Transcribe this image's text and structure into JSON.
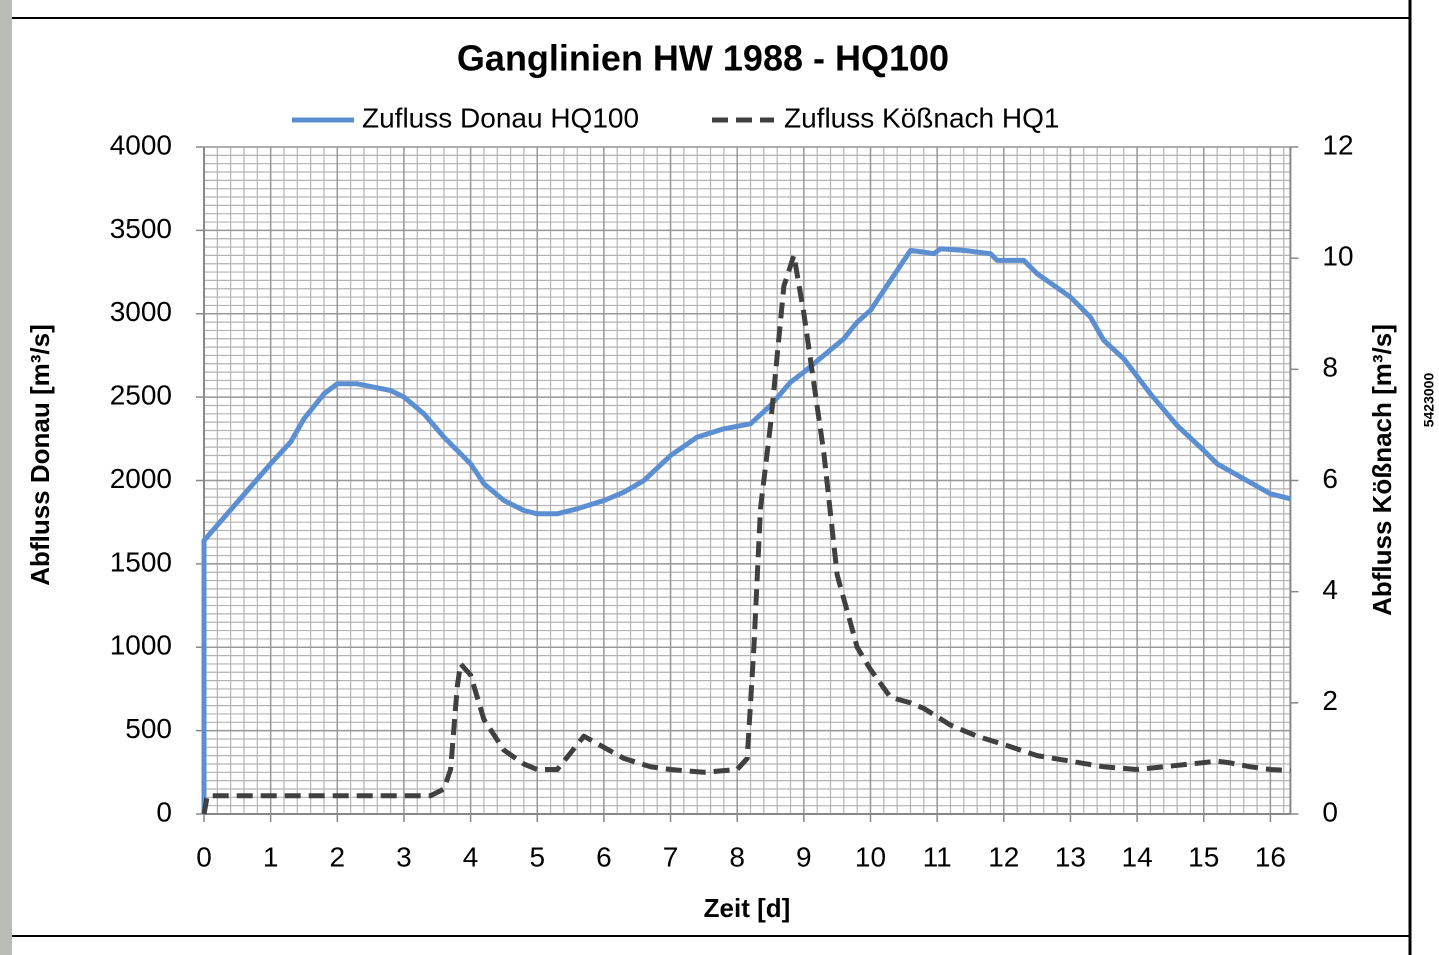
{
  "chart_data": {
    "type": "line",
    "title": "Ganglinien HW 1988 - HQ100",
    "xlabel": "Zeit [d]",
    "ylabel": "Abfluss Donau [m³/s]",
    "y2label": "Abfluss Kößnach [m³/s]",
    "xlim": [
      0,
      16.3
    ],
    "ylim": [
      0,
      4000
    ],
    "y2lim": [
      0,
      12
    ],
    "xticks": [
      0,
      1,
      2,
      3,
      4,
      5,
      6,
      7,
      8,
      9,
      10,
      11,
      12,
      13,
      14,
      15,
      16
    ],
    "yticks": [
      0,
      500,
      1000,
      1500,
      2000,
      2500,
      3000,
      3500,
      4000
    ],
    "y2ticks": [
      0,
      2,
      4,
      6,
      8,
      10,
      12
    ],
    "grid": true,
    "legend": "top",
    "series": [
      {
        "name": "Zufluss Donau HQ100",
        "color": "#5b8fd2",
        "line_style": "solid",
        "x": [
          0,
          0,
          0.5,
          1,
          1.3,
          1.5,
          1.8,
          2,
          2.3,
          2.8,
          3,
          3.3,
          3.6,
          4,
          4.2,
          4.5,
          4.8,
          5,
          5.3,
          5.6,
          6,
          6.3,
          6.6,
          7,
          7.4,
          7.8,
          8.2,
          8.5,
          8.8,
          9,
          9.3,
          9.6,
          9.8,
          10,
          10.3,
          10.6,
          10.8,
          10.95,
          11.05,
          11.4,
          11.8,
          11.9,
          12.3,
          12.5,
          13,
          13.3,
          13.5,
          13.8,
          14.2,
          14.6,
          15,
          15.2,
          15.6,
          16,
          16.3
        ],
        "values": [
          0,
          1640,
          1870,
          2100,
          2230,
          2370,
          2520,
          2580,
          2580,
          2540,
          2500,
          2400,
          2260,
          2100,
          1980,
          1880,
          1820,
          1800,
          1800,
          1830,
          1880,
          1930,
          2000,
          2150,
          2260,
          2310,
          2340,
          2450,
          2590,
          2650,
          2750,
          2850,
          2950,
          3020,
          3200,
          3380,
          3370,
          3360,
          3390,
          3380,
          3360,
          3320,
          3320,
          3240,
          3100,
          2980,
          2840,
          2730,
          2520,
          2330,
          2180,
          2100,
          2010,
          1920,
          1890
        ]
      },
      {
        "name": "Zufluss Kößnach HQ1",
        "color": "#404040",
        "line_style": "dashed",
        "axis": "y2",
        "x": [
          0,
          0.05,
          3.4,
          3.6,
          3.7,
          3.8,
          3.85,
          4,
          4.2,
          4.5,
          4.8,
          5,
          5.3,
          5.5,
          5.7,
          6,
          6.3,
          6.7,
          7,
          7.5,
          8,
          8.15,
          8.25,
          8.35,
          8.5,
          8.7,
          8.85,
          9,
          9.3,
          9.5,
          9.8,
          10,
          10.3,
          10.6,
          10.8,
          11.2,
          11.6,
          12,
          12.5,
          13,
          13.5,
          14,
          14.4,
          14.8,
          15.2,
          15.4,
          15.7,
          16,
          16.3
        ],
        "values": [
          0,
          0.33,
          0.33,
          0.45,
          0.8,
          2.3,
          2.7,
          2.5,
          1.7,
          1.15,
          0.9,
          0.8,
          0.8,
          1.1,
          1.4,
          1.2,
          1.0,
          0.85,
          0.8,
          0.75,
          0.8,
          1.0,
          3,
          5.5,
          7,
          9.5,
          10.05,
          9,
          6.5,
          4.3,
          3.0,
          2.6,
          2.1,
          2.0,
          1.9,
          1.6,
          1.4,
          1.25,
          1.05,
          0.95,
          0.85,
          0.8,
          0.85,
          0.9,
          0.95,
          0.92,
          0.85,
          0.8,
          0.78
        ]
      }
    ]
  },
  "side_label": "5423000"
}
